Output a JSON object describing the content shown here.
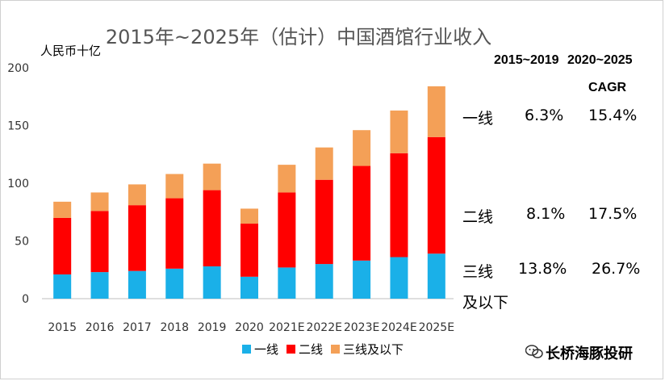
{
  "title": "2015年~2025年（估计）中国酒馆行业收入",
  "unit_label": "人民币十亿",
  "chart_data": {
    "type": "bar",
    "stacked": true,
    "categories": [
      "2015",
      "2016",
      "2017",
      "2018",
      "2019",
      "2020",
      "2021E",
      "2022E",
      "2023E",
      "2024E",
      "2025E"
    ],
    "series": [
      {
        "name": "一线",
        "color": "#1ab0e8",
        "values": [
          21,
          23,
          24,
          26,
          28,
          19,
          27,
          30,
          33,
          36,
          39
        ]
      },
      {
        "name": "二线",
        "color": "#ff0000",
        "values": [
          49,
          53,
          57,
          61,
          66,
          46,
          65,
          73,
          82,
          90,
          101
        ]
      },
      {
        "name": "三线及以下",
        "color": "#f4a057",
        "values": [
          14,
          16,
          18,
          21,
          23,
          13,
          24,
          28,
          31,
          37,
          44
        ]
      }
    ],
    "ylim": [
      0,
      200
    ],
    "yticks": [
      0,
      50,
      100,
      150,
      200
    ]
  },
  "cagr": {
    "col1_label": "2015~2019",
    "col2_label": "2020~2025",
    "col2_sub": "CAGR",
    "rows": [
      {
        "tier": "一线",
        "c1": "6.3%",
        "c2": "15.4%"
      },
      {
        "tier": "二线",
        "c1": "8.1%",
        "c2": "17.5%"
      },
      {
        "tier_line1": "三线",
        "tier_line2": "及以下",
        "c1": "13.8%",
        "c2": "26.7%"
      }
    ]
  },
  "footer": {
    "brand": "长桥海豚投研"
  }
}
